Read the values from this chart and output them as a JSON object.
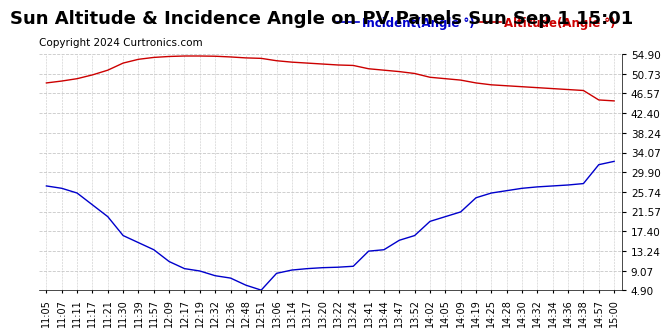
{
  "title": "Sun Altitude & Incidence Angle on PV Panels Sun Sep 1 15:01",
  "copyright": "Copyright 2024 Curtronics.com",
  "legend_incident": "Incident(Angle °)",
  "legend_altitude": "Altitude(Angle °)",
  "yticks": [
    4.9,
    9.07,
    13.24,
    17.4,
    21.57,
    25.74,
    29.9,
    34.07,
    38.24,
    42.4,
    46.57,
    50.73,
    54.9
  ],
  "ylim": [
    4.9,
    54.9
  ],
  "background_color": "#ffffff",
  "grid_color": "#c8c8c8",
  "incident_color": "#0000cc",
  "altitude_color": "#cc0000",
  "title_fontsize": 13,
  "tick_fontsize": 7.5,
  "legend_fontsize": 8.5,
  "copyright_fontsize": 7.5,
  "xtick_labels": [
    "11:05",
    "11:07",
    "11:11",
    "11:17",
    "11:21",
    "11:30",
    "11:39",
    "11:57",
    "12:09",
    "12:17",
    "12:19",
    "12:32",
    "12:36",
    "12:48",
    "12:51",
    "13:06",
    "13:14",
    "13:17",
    "13:20",
    "13:22",
    "13:24",
    "13:41",
    "13:44",
    "13:47",
    "13:52",
    "14:02",
    "14:05",
    "14:09",
    "14:19",
    "14:25",
    "14:28",
    "14:30",
    "14:32",
    "14:34",
    "14:36",
    "14:38",
    "14:57",
    "15:00"
  ],
  "altitude_values": [
    48.8,
    49.2,
    49.7,
    50.5,
    51.5,
    53.0,
    53.8,
    54.2,
    54.4,
    54.5,
    54.5,
    54.45,
    54.3,
    54.1,
    54.0,
    53.5,
    53.2,
    53.0,
    52.8,
    52.6,
    52.5,
    51.8,
    51.5,
    51.2,
    50.8,
    50.0,
    49.7,
    49.4,
    48.8,
    48.4,
    48.2,
    48.0,
    47.8,
    47.6,
    47.4,
    47.2,
    45.2,
    45.0
  ],
  "incident_values": [
    27.0,
    26.5,
    25.5,
    23.0,
    20.5,
    16.5,
    15.0,
    13.5,
    11.0,
    9.5,
    9.0,
    8.0,
    7.5,
    6.0,
    4.95,
    8.5,
    9.2,
    9.5,
    9.7,
    9.8,
    10.0,
    13.2,
    13.5,
    15.5,
    16.5,
    19.5,
    20.5,
    21.5,
    24.5,
    25.5,
    26.0,
    26.5,
    26.8,
    27.0,
    27.2,
    27.5,
    31.5,
    32.2
  ]
}
